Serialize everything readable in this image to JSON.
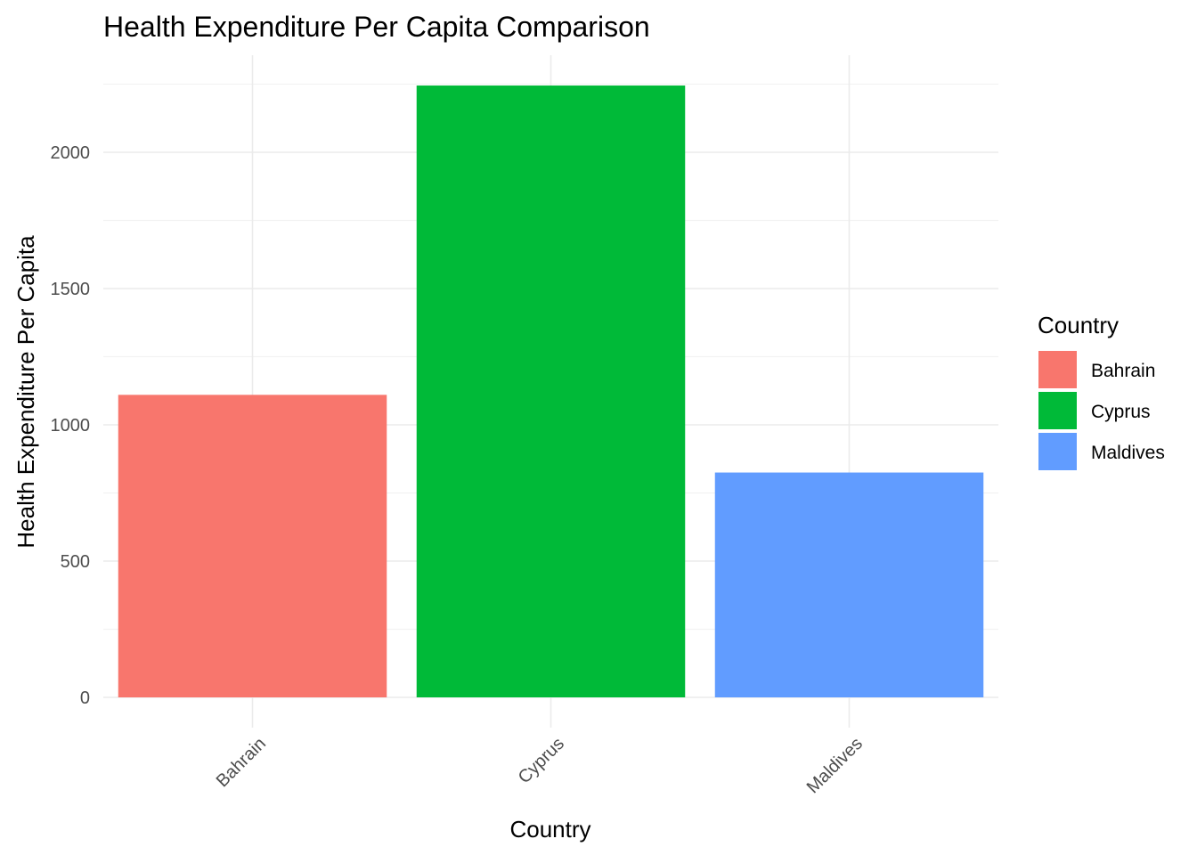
{
  "chart_data": {
    "type": "bar",
    "title": "Health Expenditure Per Capita Comparison",
    "xlabel": "Country",
    "ylabel": "Health Expenditure Per Capita",
    "categories": [
      "Bahrain",
      "Cyprus",
      "Maldives"
    ],
    "values": [
      1110,
      2245,
      825
    ],
    "colors": [
      "#F8766D",
      "#00BA38",
      "#619CFF"
    ],
    "ylim": [
      0,
      2350
    ],
    "yticks": [
      0,
      500,
      1000,
      1500,
      2000
    ],
    "ytick_labels": [
      "0",
      "500",
      "1000",
      "1500",
      "2000"
    ],
    "xtick_rotation_deg": -45,
    "grid": true,
    "legend": {
      "title": "Country",
      "placement": "right",
      "items": [
        "Bahrain",
        "Cyprus",
        "Maldives"
      ]
    }
  }
}
